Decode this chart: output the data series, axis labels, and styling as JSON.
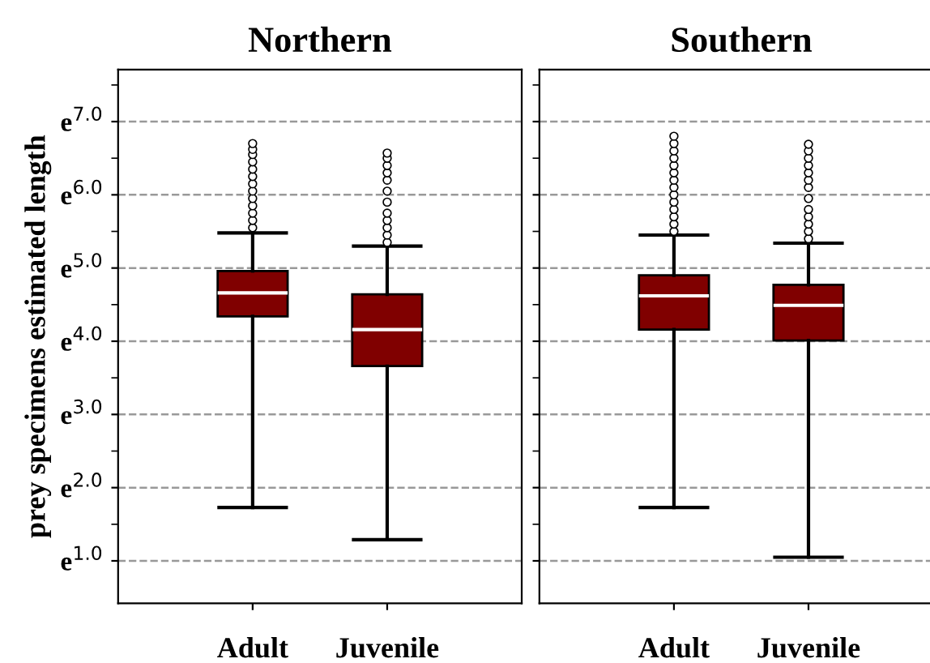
{
  "chart_data": [
    {
      "type": "box",
      "title": "Northern",
      "ylabel": "prey specimens estimated length",
      "categories": [
        "Adult",
        "Juvenile"
      ],
      "color": "#800000",
      "grid": "y",
      "line_style": "dashed",
      "ylim": [
        0.42,
        7.71
      ],
      "yticks": [
        {
          "value": 1.0,
          "label": "e$^{1.0}$"
        },
        {
          "value": 1.5,
          "label": null
        },
        {
          "value": 2.0,
          "label": "e$^{2.0}$"
        },
        {
          "value": 2.5,
          "label": null
        },
        {
          "value": 3.0,
          "label": "e$^{3.0}$"
        },
        {
          "value": 3.5,
          "label": null
        },
        {
          "value": 4.0,
          "label": "e$^{4.0}$"
        },
        {
          "value": 4.5,
          "label": null
        },
        {
          "value": 5.0,
          "label": "e$^{5.0}$"
        },
        {
          "value": 5.5,
          "label": null
        },
        {
          "value": 6.0,
          "label": "e$^{6.0}$"
        },
        {
          "value": 6.5,
          "label": null
        },
        {
          "value": 7.0,
          "label": "e$^{7.0}$"
        },
        {
          "value": 7.5,
          "label": null
        }
      ],
      "boxes": [
        {
          "low": 1.73,
          "q1": 4.34,
          "median": 4.66,
          "q3": 4.96,
          "high": 5.48,
          "outliers": [
            5.55,
            5.65,
            5.75,
            5.85,
            5.95,
            6.05,
            6.15,
            6.25,
            6.35,
            6.45,
            6.55,
            6.62,
            6.7
          ]
        },
        {
          "low": 1.29,
          "q1": 3.66,
          "median": 4.16,
          "q3": 4.64,
          "high": 5.3,
          "outliers": [
            5.35,
            5.45,
            5.55,
            5.65,
            5.75,
            5.9,
            6.05,
            6.2,
            6.3,
            6.4,
            6.5,
            6.57
          ]
        }
      ]
    },
    {
      "type": "box",
      "title": "Southern",
      "categories": [
        "Adult",
        "Juvenile"
      ],
      "color": "#800000",
      "grid": "y",
      "line_style": "dashed",
      "ylim": [
        0.42,
        7.71
      ],
      "tick_labels": "x",
      "yticks": [
        1,
        {
          "value": 1.5,
          "label": null
        },
        2,
        {
          "value": 2.5,
          "label": null
        },
        3,
        {
          "value": 3.5,
          "label": null
        },
        4,
        {
          "value": 4.5,
          "label": null
        },
        5,
        {
          "value": 5.5,
          "label": null
        },
        6,
        {
          "value": 6.5,
          "label": null
        },
        7,
        {
          "value": 7.5,
          "label": null
        }
      ],
      "boxes": [
        {
          "low": 1.73,
          "q1": 4.16,
          "median": 4.62,
          "q3": 4.9,
          "high": 5.45,
          "outliers": [
            5.5,
            5.6,
            5.7,
            5.8,
            5.9,
            6.0,
            6.1,
            6.2,
            6.3,
            6.4,
            6.5,
            6.6,
            6.7,
            6.8
          ]
        },
        {
          "low": 1.05,
          "q1": 4.01,
          "median": 4.49,
          "q3": 4.77,
          "high": 5.34,
          "outliers": [
            5.4,
            5.5,
            5.6,
            5.7,
            5.8,
            5.95,
            6.1,
            6.2,
            6.3,
            6.4,
            6.5,
            6.6,
            6.69
          ]
        }
      ]
    }
  ]
}
